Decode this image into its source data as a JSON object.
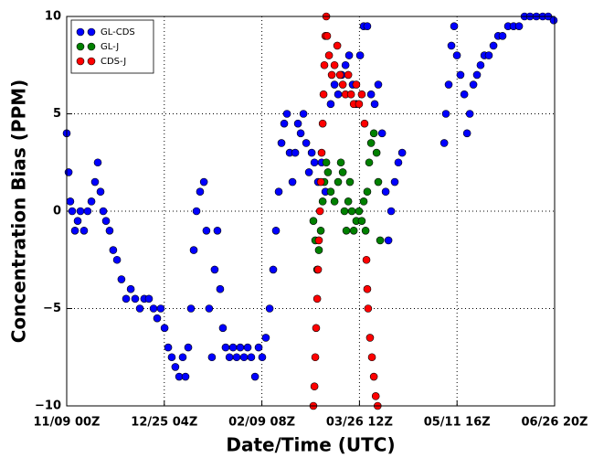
{
  "chart_data": {
    "type": "scatter",
    "xlabel": "Date/Time (UTC)",
    "ylabel": "Concentration Bias (PPM)",
    "xlim": [
      0,
      230.833
    ],
    "ylim": [
      -10,
      10
    ],
    "xticks": [
      {
        "value": 0,
        "label": "11/09 00Z"
      },
      {
        "value": 46.167,
        "label": "12/25 04Z"
      },
      {
        "value": 92.333,
        "label": "02/09 08Z"
      },
      {
        "value": 138.5,
        "label": "03/26 12Z"
      },
      {
        "value": 184.667,
        "label": "05/11 16Z"
      },
      {
        "value": 230.833,
        "label": "06/26 20Z"
      }
    ],
    "yticks": [
      {
        "value": -10,
        "label": "−10"
      },
      {
        "value": -5,
        "label": "−5"
      },
      0,
      5,
      10
    ],
    "grid": true,
    "legend": "upper left",
    "series": [
      {
        "name": "GL-CDS",
        "color": "#0000ff",
        "x": [
          0,
          0.9,
          1.7,
          2.6,
          3.9,
          5.2,
          6.5,
          8.2,
          9.9,
          11.7,
          13.4,
          14.7,
          16.0,
          17.3,
          18.6,
          20.3,
          22.0,
          23.8,
          25.9,
          28.1,
          30.3,
          32.4,
          34.6,
          36.7,
          38.9,
          41.1,
          42.8,
          44.5,
          46.3,
          48.0,
          49.7,
          51.4,
          53.2,
          54.9,
          56.2,
          57.5,
          58.8,
          60.1,
          61.4,
          63.1,
          64.9,
          66.1,
          67.4,
          68.7,
          70.0,
          71.3,
          72.6,
          73.9,
          75.2,
          77.0,
          78.7,
          80.4,
          82.1,
          83.9,
          85.6,
          87.3,
          89.1,
          90.8,
          92.5,
          94.2,
          96.0,
          97.7,
          99.0,
          100.3,
          101.6,
          102.9,
          104.2,
          105.5,
          106.8,
          108.1,
          109.4,
          110.7,
          112.0,
          113.3,
          114.6,
          115.9,
          117.2,
          118.9,
          120.6,
          122.4,
          124.9,
          126.7,
          128.4,
          130.1,
          131.9,
          133.6,
          135.3,
          137.0,
          138.8,
          140.5,
          142.2,
          144.0,
          145.7,
          147.4,
          149.2,
          150.9,
          152.2,
          153.5,
          155.2,
          156.9,
          158.7,
          178.6,
          179.4,
          180.7,
          182.0,
          183.3,
          184.6,
          186.3,
          188.1,
          189.4,
          190.7,
          192.4,
          194.1,
          195.8,
          197.6,
          199.7,
          201.9,
          204.1,
          206.2,
          208.8,
          211.4,
          214.0,
          216.6,
          219.2,
          222.2,
          225.2,
          227.8,
          230.4
        ],
        "values": [
          4,
          2,
          0.5,
          0,
          -1,
          -0.5,
          0,
          -1,
          0,
          0.5,
          1.5,
          2.5,
          1,
          0,
          -0.5,
          -1,
          -2,
          -2.5,
          -3.5,
          -4.5,
          -4,
          -4.5,
          -5,
          -4.5,
          -4.5,
          -5,
          -5.5,
          -5,
          -6,
          -7,
          -7.5,
          -8,
          -8.5,
          -7.5,
          -8.5,
          -7,
          -5,
          -2,
          0,
          1,
          1.5,
          -1,
          -5,
          -7.5,
          -3,
          -1,
          -4,
          -6,
          -7,
          -7.5,
          -7,
          -7.5,
          -7,
          -7.5,
          -7,
          -7.5,
          -8.5,
          -7,
          -7.5,
          -6.5,
          -5,
          -3,
          -1,
          1,
          3.5,
          4.5,
          5,
          3,
          1.5,
          3,
          4.5,
          4,
          5,
          3.5,
          2,
          3,
          2.5,
          1.5,
          2.5,
          1,
          5.5,
          6.5,
          6,
          7,
          7.5,
          8,
          6.5,
          5.5,
          8,
          9.5,
          9.5,
          6,
          5.5,
          6.5,
          4,
          1,
          -1.5,
          0,
          1.5,
          2.5,
          3,
          3.5,
          5,
          6.5,
          8.5,
          9.5,
          8,
          7,
          6,
          4,
          5,
          6.5,
          7,
          7.5,
          8,
          8,
          8.5,
          9,
          9,
          9.5,
          9.5,
          9.5,
          10,
          10,
          10,
          10,
          10,
          9.8
        ]
      },
      {
        "name": "GL-J",
        "color": "#008000",
        "x": [
          116.7,
          117.6,
          118.5,
          119.3,
          120.2,
          121.1,
          121.9,
          122.8,
          123.6,
          124.9,
          126.7,
          128.4,
          129.7,
          130.6,
          131.4,
          132.3,
          133.2,
          134.0,
          134.9,
          135.8,
          137.0,
          138.3,
          139.6,
          140.5,
          141.4,
          142.2,
          143.1,
          144.0,
          145.3,
          146.6,
          147.4,
          148.3
        ],
        "values": [
          -0.5,
          -1.5,
          -3,
          -2,
          -1,
          0.5,
          1.5,
          2.5,
          2,
          1,
          0.5,
          1.5,
          2.5,
          2,
          0,
          -1,
          0.5,
          1.5,
          0,
          -1,
          -0.5,
          0,
          -0.5,
          0.5,
          -1,
          1,
          2.5,
          3.5,
          4,
          3,
          1.5,
          -1.5
        ]
      },
      {
        "name": "CDS-J",
        "color": "#ff0000",
        "x": [
          116.7,
          117.2,
          117.6,
          118.0,
          118.5,
          118.9,
          119.3,
          119.8,
          120.2,
          120.6,
          121.1,
          121.5,
          121.9,
          122.4,
          122.8,
          123.2,
          124.1,
          125.4,
          126.7,
          128.0,
          129.3,
          130.6,
          131.9,
          133.2,
          134.5,
          135.8,
          137.0,
          138.3,
          139.6,
          140.9,
          141.8,
          142.2,
          142.6,
          143.5,
          144.4,
          145.3,
          146.2,
          147.1
        ],
        "values": [
          -10,
          -9,
          -7.5,
          -6,
          -4.5,
          -3,
          -1.5,
          0,
          1.5,
          3,
          4.5,
          6,
          7.5,
          9,
          10,
          9,
          8,
          7,
          7.5,
          8.5,
          7,
          6.5,
          6,
          7,
          6,
          5.5,
          6.5,
          5.5,
          6,
          4.5,
          -2.5,
          -4,
          -5,
          -6.5,
          -7.5,
          -8.5,
          -9.5,
          -10
        ]
      }
    ]
  }
}
